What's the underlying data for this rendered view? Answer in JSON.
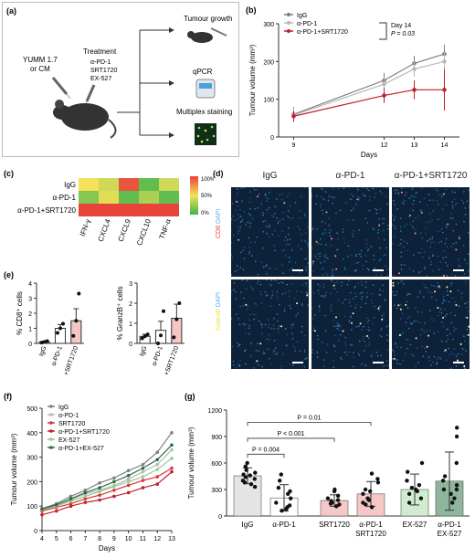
{
  "panels": {
    "a": {
      "letter": "(a)",
      "model_label_1": "YUMM 1.7",
      "model_label_2": "or CM",
      "treatment_title": "Treatment",
      "treatments": [
        "α-PD-1",
        "SRT1720",
        "EX-527"
      ],
      "outputs": [
        "Tumour growth",
        "qPCR",
        "Multiplex staining"
      ]
    },
    "b": {
      "letter": "(b)"
    },
    "c": {
      "letter": "(c)"
    },
    "d": {
      "letter": "(d)",
      "columns": [
        "IgG",
        "α-PD-1",
        "α-PD-1+SRT1720"
      ],
      "row_labels": [
        {
          "marker": "CD8",
          "counter": "DAPI"
        },
        {
          "marker": "GranzB",
          "counter": "DAPI"
        }
      ]
    },
    "e": {
      "letter": "(e)"
    },
    "f": {
      "letter": "(f)"
    },
    "g": {
      "letter": "(g)"
    }
  },
  "colors": {
    "igg": "#7f7f7f",
    "apd1": "#b8b8b8",
    "apd1_srt": "#c0202a",
    "srt": "#e0323a",
    "ex527": "#8fcf8f",
    "apd1_ex": "#2f6b45",
    "heat_red": "#e8443a",
    "heat_yellow": "#f3e25a",
    "heat_green": "#3db44b"
  },
  "chart_data": [
    {
      "id": "b",
      "type": "line",
      "xlabel": "Days",
      "ylabel": "Tumour volume (mm³)",
      "x": [
        9,
        12,
        13,
        14
      ],
      "xlim": [
        8.5,
        14.5
      ],
      "ylim": [
        0,
        300
      ],
      "yticks": [
        0,
        100,
        200,
        300
      ],
      "series": [
        {
          "name": "IgG",
          "values": [
            60,
            150,
            195,
            220
          ],
          "err": [
            20,
            20,
            20,
            25
          ]
        },
        {
          "name": "α-PD-1",
          "values": [
            58,
            140,
            180,
            200
          ],
          "err": [
            18,
            18,
            20,
            25
          ]
        },
        {
          "name": "α-PD-1+SRT1720",
          "values": [
            55,
            110,
            125,
            125
          ],
          "err": [
            15,
            20,
            25,
            55
          ]
        }
      ],
      "annotation": {
        "line1": "Day 14",
        "line2": "P = 0.03"
      }
    },
    {
      "id": "c",
      "type": "heatmap",
      "rows": [
        "IgG",
        "α-PD-1",
        "α-PD-1+SRT1720"
      ],
      "columns": [
        "IFN-γ",
        "CXCL4",
        "CXCL9",
        "CXCL10",
        "TNF-α"
      ],
      "values": [
        [
          50,
          40,
          95,
          10,
          40
        ],
        [
          20,
          45,
          10,
          30,
          10
        ],
        [
          100,
          100,
          100,
          100,
          100
        ]
      ],
      "scale": {
        "min_label": "0%",
        "mid_label": "50%",
        "max_label": "100%"
      }
    },
    {
      "id": "e1",
      "type": "bar",
      "ylabel": "% CD8⁺ cells",
      "categories": [
        "IgG",
        "α-PD-1",
        "α-PD-1 +SRT1720"
      ],
      "values": [
        0.1,
        1.0,
        1.5
      ],
      "err": [
        0.05,
        0.25,
        0.8
      ],
      "points": [
        [
          0.05,
          0.1,
          0.15
        ],
        [
          0.7,
          1.0,
          1.3
        ],
        [
          0.5,
          1.5,
          3.3
        ]
      ],
      "ylim": [
        0,
        4
      ],
      "yticks": [
        0,
        1,
        2,
        3,
        4
      ]
    },
    {
      "id": "e2",
      "type": "bar",
      "ylabel": "% GranzB⁺ cells",
      "categories": [
        "IgG",
        "α-PD-1",
        "α-PD-1 +SRT1720"
      ],
      "values": [
        0.35,
        0.65,
        1.25
      ],
      "err": [
        0.1,
        0.45,
        0.7
      ],
      "points": [
        [
          0.25,
          0.35,
          0.45
        ],
        [
          0.0,
          0.4,
          1.6
        ],
        [
          0.3,
          1.2,
          2.0
        ]
      ],
      "ylim": [
        0,
        3
      ],
      "yticks": [
        0,
        1,
        2,
        3
      ]
    },
    {
      "id": "f",
      "type": "line",
      "xlabel": "Days",
      "ylabel": "Tumour volume (mm³)",
      "x": [
        4,
        5,
        6,
        7,
        8,
        9,
        10,
        11,
        12,
        13
      ],
      "ylim": [
        0,
        500
      ],
      "yticks": [
        0,
        100,
        200,
        300,
        400,
        500
      ],
      "series": [
        {
          "name": "IgG",
          "values": [
            90,
            110,
            140,
            165,
            195,
            215,
            245,
            270,
            320,
            400
          ]
        },
        {
          "name": "α-PD-1",
          "values": [
            85,
            100,
            125,
            150,
            165,
            185,
            210,
            240,
            270,
            330
          ]
        },
        {
          "name": "SRT1720",
          "values": [
            80,
            95,
            110,
            130,
            145,
            165,
            185,
            205,
            220,
            255
          ]
        },
        {
          "name": "α-PD-1+SRT1720",
          "values": [
            65,
            80,
            100,
            115,
            125,
            140,
            155,
            175,
            190,
            240
          ]
        },
        {
          "name": "EX-527",
          "values": [
            85,
            100,
            120,
            140,
            160,
            180,
            200,
            220,
            250,
            295
          ]
        },
        {
          "name": "α-PD-1+EX-527",
          "values": [
            88,
            105,
            130,
            155,
            175,
            200,
            225,
            255,
            290,
            350
          ]
        }
      ]
    },
    {
      "id": "g",
      "type": "bar",
      "ylabel": "Tumour volume (mm³)",
      "categories": [
        "IgG",
        "α-PD-1",
        "SRT1720",
        "α-PD-1 SRT1720",
        "EX-527",
        "α-PD-1 EX-527"
      ],
      "values": [
        455,
        205,
        175,
        250,
        300,
        395
      ],
      "err": [
        90,
        150,
        65,
        140,
        175,
        330
      ],
      "ylim": [
        0,
        1200
      ],
      "yticks": [
        0,
        300,
        600,
        900,
        1200
      ],
      "points": [
        [
          380,
          400,
          420,
          440,
          460,
          470,
          490,
          520,
          560,
          600,
          330,
          360
        ],
        [
          60,
          80,
          100,
          150,
          200,
          250,
          280,
          320,
          400,
          470,
          120
        ],
        [
          110,
          130,
          150,
          170,
          180,
          200,
          230,
          280,
          300,
          140
        ],
        [
          100,
          150,
          180,
          200,
          250,
          280,
          300,
          380,
          420,
          480,
          130
        ],
        [
          150,
          200,
          250,
          280,
          300,
          320,
          350,
          400,
          500,
          600
        ],
        [
          150,
          200,
          250,
          300,
          350,
          400,
          450,
          600,
          900,
          1000,
          300
        ]
      ],
      "comparisons": [
        {
          "label": "P = 0.004",
          "from": 0,
          "to": 1
        },
        {
          "label": "P < 0.001",
          "from": 0,
          "to": 2
        },
        {
          "label": "P = 0.01",
          "from": 0,
          "to": 3
        }
      ]
    }
  ]
}
